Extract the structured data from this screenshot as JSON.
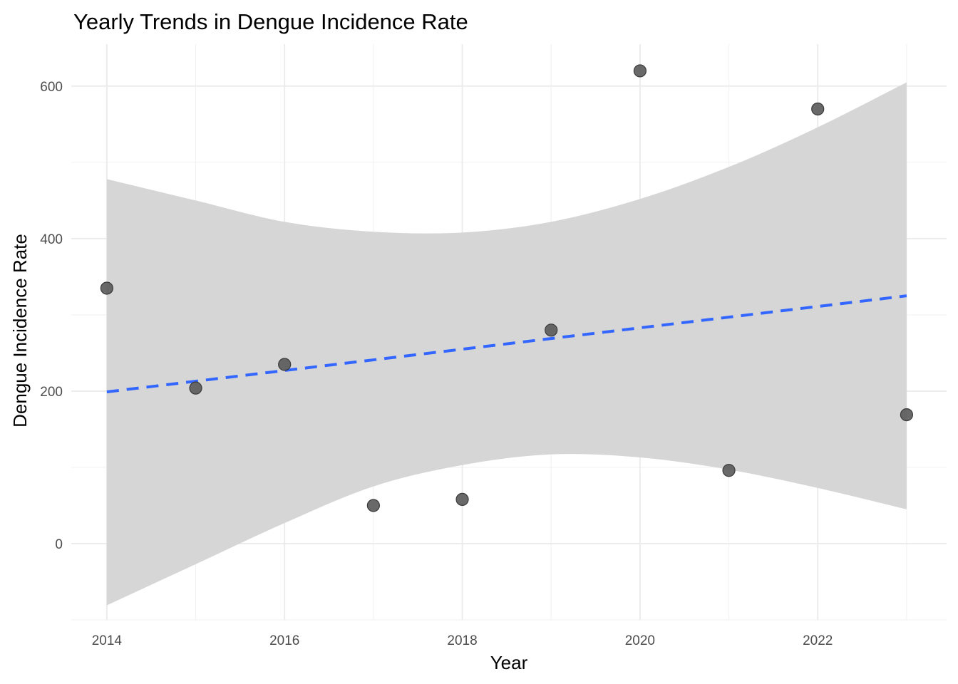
{
  "chart_data": {
    "type": "scatter",
    "title": "Yearly Trends in Dengue Incidence Rate",
    "xlabel": "Year",
    "ylabel": "Dengue Incidence Rate",
    "xlim": [
      2013.6,
      2023.45
    ],
    "ylim": [
      -100,
      655
    ],
    "x_ticks": [
      2014,
      2016,
      2018,
      2020,
      2022
    ],
    "y_ticks": [
      0,
      200,
      400,
      600
    ],
    "x_tick_labels": [
      "2014",
      "2016",
      "2018",
      "2020",
      "2022"
    ],
    "y_tick_labels": [
      "0",
      "200",
      "400",
      "600"
    ],
    "grid": true,
    "points": [
      {
        "x": 2014,
        "y": 335
      },
      {
        "x": 2015,
        "y": 204
      },
      {
        "x": 2016,
        "y": 235
      },
      {
        "x": 2017,
        "y": 50
      },
      {
        "x": 2018,
        "y": 58
      },
      {
        "x": 2019,
        "y": 280
      },
      {
        "x": 2020,
        "y": 620
      },
      {
        "x": 2021,
        "y": 96
      },
      {
        "x": 2022,
        "y": 570
      },
      {
        "x": 2023,
        "y": 169
      }
    ],
    "trend_line": {
      "style": "dashed",
      "color": "#3366ff",
      "points": [
        {
          "x": 2014,
          "y": 199
        },
        {
          "x": 2023,
          "y": 325
        }
      ]
    },
    "confidence_band": {
      "color": "#d6d6d6",
      "x": [
        2014,
        2015,
        2016,
        2017,
        2018,
        2019,
        2020,
        2021,
        2022,
        2023
      ],
      "upper": [
        478,
        450,
        422,
        409,
        408,
        422,
        452,
        494,
        546,
        605
      ],
      "lower": [
        -81,
        -27,
        27,
        75,
        103,
        117,
        113,
        97,
        73,
        45
      ]
    },
    "point_color": "#595959"
  }
}
